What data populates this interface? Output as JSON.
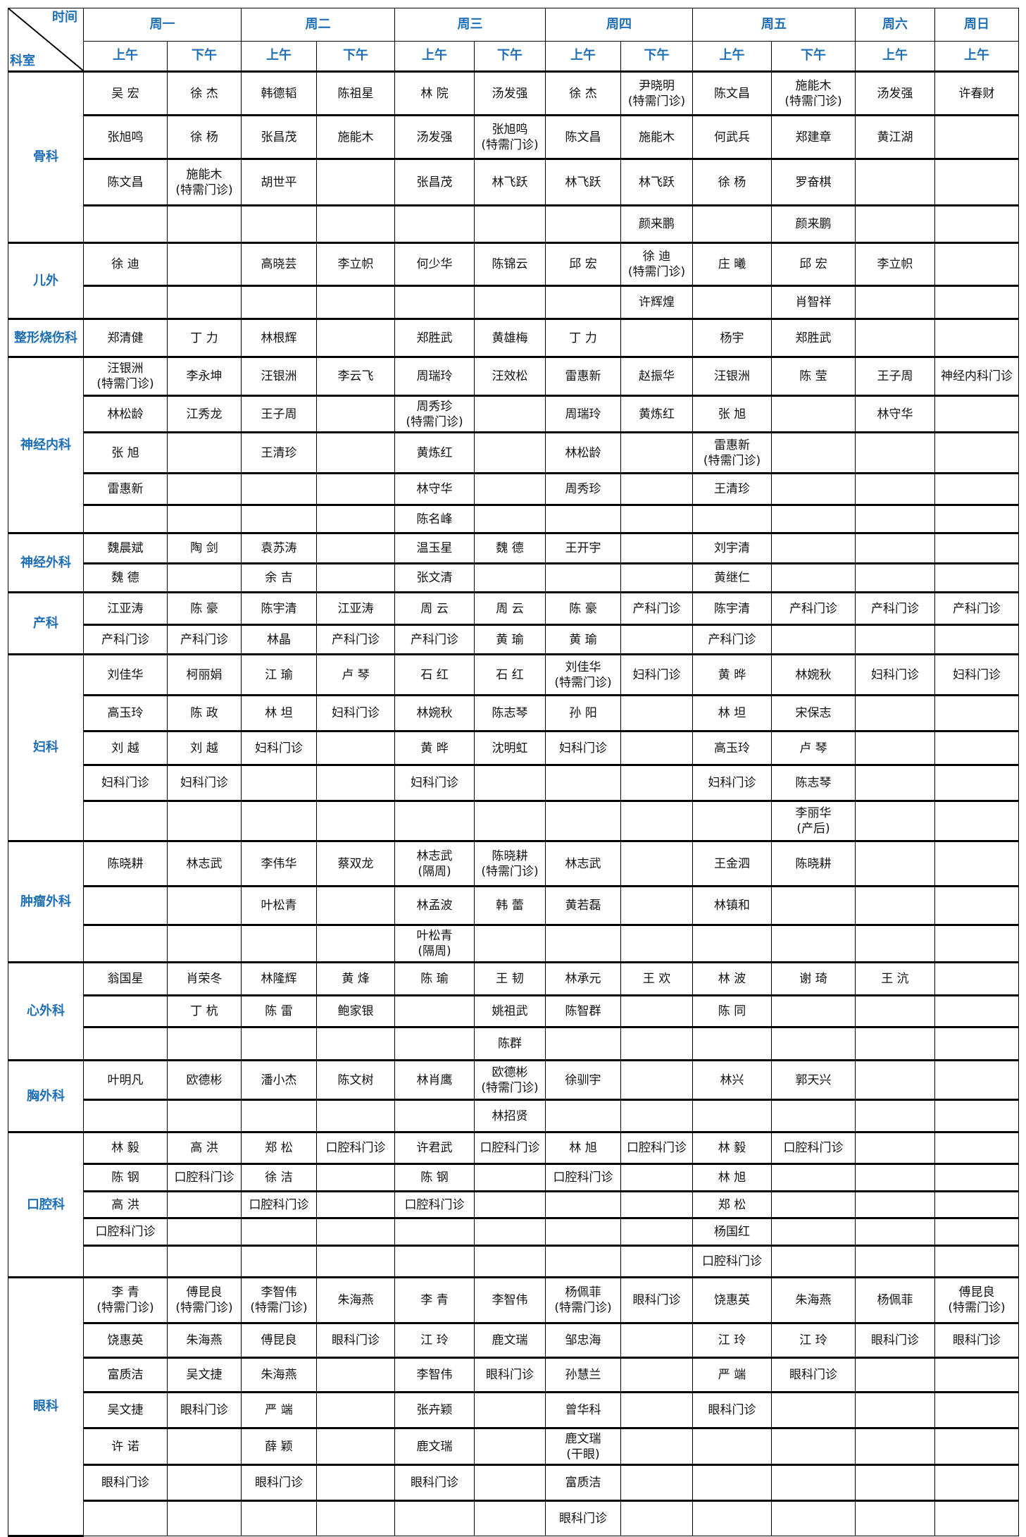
{
  "header": {
    "corner_top": "时间",
    "corner_bottom": "科室",
    "days": [
      {
        "label": "周一",
        "span": 2
      },
      {
        "label": "周二",
        "span": 2
      },
      {
        "label": "周三",
        "span": 2
      },
      {
        "label": "周四",
        "span": 2
      },
      {
        "label": "周五",
        "span": 2
      },
      {
        "label": "周六",
        "span": 1
      },
      {
        "label": "周日",
        "span": 1
      }
    ],
    "periods": [
      "上午",
      "下午",
      "上午",
      "下午",
      "上午",
      "下午",
      "上午",
      "下午",
      "上午",
      "下午",
      "上午",
      "上午"
    ]
  },
  "header_color": "#1f6fb6",
  "departments": [
    {
      "name": "骨科",
      "rows": [
        [
          "吴 宏",
          "徐 杰",
          "韩德韬",
          "陈祖星",
          "林 院",
          "汤发强",
          "徐 杰",
          "尹晓明\n(特需门诊)",
          "陈文昌",
          "施能木\n(特需门诊)",
          "汤发强",
          "许春财"
        ],
        [
          "张旭鸣",
          "徐 杨",
          "张昌茂",
          "施能木",
          "汤发强",
          "张旭鸣\n(特需门诊)",
          "陈文昌",
          "施能木",
          "何武兵",
          "郑建章",
          "黄江湖",
          ""
        ],
        [
          "陈文昌",
          "施能木\n(特需门诊)",
          "胡世平",
          "",
          "张昌茂",
          "林飞跃",
          "林飞跃",
          "林飞跃",
          "徐 杨",
          "罗奋棋",
          "",
          ""
        ],
        [
          "",
          "",
          "",
          "",
          "",
          "",
          "",
          "颜来鹏",
          "",
          "颜来鹏",
          "",
          ""
        ]
      ]
    },
    {
      "name": "儿外",
      "rows": [
        [
          "徐 迪",
          "",
          "高晓芸",
          "李立帜",
          "何少华",
          "陈锦云",
          "邱 宏",
          "徐 迪\n(特需门诊)",
          "庄 曦",
          "邱 宏",
          "李立帜",
          ""
        ],
        [
          "",
          "",
          "",
          "",
          "",
          "",
          "",
          "许辉煌",
          "",
          "肖智祥",
          "",
          ""
        ]
      ]
    },
    {
      "name": "整形烧伤科",
      "rows": [
        [
          "郑清健",
          "丁 力",
          "林根辉",
          "",
          "郑胜武",
          "黄雄梅",
          "丁 力",
          "",
          "杨宇",
          "郑胜武",
          "",
          ""
        ]
      ]
    },
    {
      "name": "神经内科",
      "rows": [
        [
          "汪银洲\n(特需门诊)",
          "李永坤",
          "汪银洲",
          "李云飞",
          "周瑞玲",
          "汪效松",
          "雷惠新",
          "赵振华",
          "汪银洲",
          "陈 莹",
          "王子周",
          "神经内科门诊"
        ],
        [
          "林松龄",
          "江秀龙",
          "王子周",
          "",
          "周秀珍\n(特需门诊)",
          "",
          "周瑞玲",
          "黄炼红",
          "张 旭",
          "",
          "林守华",
          ""
        ],
        [
          "张 旭",
          "",
          "王清珍",
          "",
          "黄炼红",
          "",
          "林松龄",
          "",
          "雷惠新\n(特需门诊)",
          "",
          "",
          ""
        ],
        [
          "雷惠新",
          "",
          "",
          "",
          "林守华",
          "",
          "周秀珍",
          "",
          "王清珍",
          "",
          "",
          ""
        ],
        [
          "",
          "",
          "",
          "",
          "陈名峰",
          "",
          "",
          "",
          "",
          "",
          "",
          ""
        ]
      ]
    },
    {
      "name": "神经外科",
      "rows": [
        [
          "魏晨斌",
          "陶 剑",
          "袁苏涛",
          "",
          "温玉星",
          "魏 德",
          "王开宇",
          "",
          "刘宇清",
          "",
          "",
          ""
        ],
        [
          "魏 德",
          "",
          "余 吉",
          "",
          "张文清",
          "",
          "",
          "",
          "黄继仁",
          "",
          "",
          ""
        ]
      ]
    },
    {
      "name": "产科",
      "rows": [
        [
          "江亚涛",
          "陈 豪",
          "陈宇清",
          "江亚涛",
          "周 云",
          "周 云",
          "陈 豪",
          "产科门诊",
          "陈宇清",
          "产科门诊",
          "产科门诊",
          "产科门诊"
        ],
        [
          "产科门诊",
          "产科门诊",
          "林晶",
          "产科门诊",
          "产科门诊",
          "黄 瑜",
          "黄 瑜",
          "",
          "产科门诊",
          "",
          "",
          ""
        ]
      ]
    },
    {
      "name": "妇科",
      "rows": [
        [
          "刘佳华",
          "柯丽娟",
          "江 瑜",
          "卢 琴",
          "石 红",
          "石 红",
          "刘佳华\n(特需门诊)",
          "妇科门诊",
          "黄 晔",
          "林婉秋",
          "妇科门诊",
          "妇科门诊"
        ],
        [
          "高玉玲",
          "陈 政",
          "林 坦",
          "妇科门诊",
          "林婉秋",
          "陈志琴",
          "孙 阳",
          "",
          "林 坦",
          "宋保志",
          "",
          ""
        ],
        [
          "刘 越",
          "刘 越",
          "妇科门诊",
          "",
          "黄 晔",
          "沈明虹",
          "妇科门诊",
          "",
          "高玉玲",
          "卢 琴",
          "",
          ""
        ],
        [
          "妇科门诊",
          "妇科门诊",
          "",
          "",
          "妇科门诊",
          "",
          "",
          "",
          "妇科门诊",
          "陈志琴",
          "",
          ""
        ],
        [
          "",
          "",
          "",
          "",
          "",
          "",
          "",
          "",
          "",
          "李丽华\n(产后)",
          "",
          ""
        ]
      ]
    },
    {
      "name": "肿瘤外科",
      "rows": [
        [
          "陈晓耕",
          "林志武",
          "李伟华",
          "蔡双龙",
          "林志武\n(隔周)",
          "陈晓耕\n(特需门诊)",
          "林志武",
          "",
          "王金泗",
          "陈晓耕",
          "",
          ""
        ],
        [
          "",
          "",
          "叶松青",
          "",
          "林孟波",
          "韩 蕾",
          "黄若磊",
          "",
          "林镇和",
          "",
          "",
          ""
        ],
        [
          "",
          "",
          "",
          "",
          "叶松青\n(隔周)",
          "",
          "",
          "",
          "",
          "",
          "",
          ""
        ]
      ]
    },
    {
      "name": "心外科",
      "rows": [
        [
          "翁国星",
          "肖荣冬",
          "林隆辉",
          "黄 烽",
          "陈 瑜",
          "王 韧",
          "林承元",
          "王 欢",
          "林 波",
          "谢 琦",
          "王 沆",
          ""
        ],
        [
          "",
          "丁 杭",
          "陈 雷",
          "鲍家银",
          "",
          "姚祖武",
          "陈智群",
          "",
          "陈 同",
          "",
          "",
          ""
        ],
        [
          "",
          "",
          "",
          "",
          "",
          "陈群",
          "",
          "",
          "",
          "",
          "",
          ""
        ]
      ]
    },
    {
      "name": "胸外科",
      "rows": [
        [
          "叶明凡",
          "欧德彬",
          "潘小杰",
          "陈文树",
          "林肖鹰",
          "欧德彬\n(特需门诊)",
          "徐驯宇",
          "",
          "林兴",
          "郭天兴",
          "",
          ""
        ],
        [
          "",
          "",
          "",
          "",
          "",
          "林招贤",
          "",
          "",
          "",
          "",
          "",
          ""
        ]
      ]
    },
    {
      "name": "口腔科",
      "rows": [
        [
          "林 毅",
          "高 洪",
          "郑 松",
          "口腔科门诊",
          "许君武",
          "口腔科门诊",
          "林 旭",
          "口腔科门诊",
          "林 毅",
          "口腔科门诊",
          "",
          ""
        ],
        [
          "陈 钢",
          "口腔科门诊",
          "徐 洁",
          "",
          "陈 钢",
          "",
          "口腔科门诊",
          "",
          "林 旭",
          "",
          "",
          ""
        ],
        [
          "高 洪",
          "",
          "口腔科门诊",
          "",
          "口腔科门诊",
          "",
          "",
          "",
          "郑 松",
          "",
          "",
          ""
        ],
        [
          "口腔科门诊",
          "",
          "",
          "",
          "",
          "",
          "",
          "",
          "杨国红",
          "",
          "",
          ""
        ],
        [
          "",
          "",
          "",
          "",
          "",
          "",
          "",
          "",
          "口腔科门诊",
          "",
          "",
          ""
        ]
      ]
    },
    {
      "name": "眼科",
      "rows": [
        [
          "李 青\n(特需门诊)",
          "傅昆良\n(特需门诊)",
          "李智伟\n(特需门诊)",
          "朱海燕",
          "李 青",
          "李智伟",
          "杨佩菲\n(特需门诊)",
          "眼科门诊",
          "饶惠英",
          "朱海燕",
          "杨佩菲",
          "傅昆良\n(特需门诊)"
        ],
        [
          "饶惠英",
          "朱海燕",
          "傅昆良",
          "眼科门诊",
          "江 玲",
          "鹿文瑞",
          "邹忠海",
          "",
          "江 玲",
          "江 玲",
          "眼科门诊",
          "眼科门诊"
        ],
        [
          "富质洁",
          "吴文捷",
          "朱海燕",
          "",
          "李智伟",
          "眼科门诊",
          "孙慧兰",
          "",
          "严 端",
          "眼科门诊",
          "",
          ""
        ],
        [
          "吴文捷",
          "眼科门诊",
          "严 端",
          "",
          "张卉颖",
          "",
          "曾华科",
          "",
          "眼科门诊",
          "",
          "",
          ""
        ],
        [
          "许 诺",
          "",
          "薛 颖",
          "",
          "鹿文瑞",
          "",
          "鹿文瑞\n(干眼)",
          "",
          "",
          "",
          "",
          ""
        ],
        [
          "眼科门诊",
          "",
          "眼科门诊",
          "",
          "眼科门诊",
          "",
          "富质洁",
          "",
          "",
          "",
          "",
          ""
        ],
        [
          "",
          "",
          "",
          "",
          "",
          "",
          "眼科门诊",
          "",
          "",
          "",
          "",
          ""
        ]
      ]
    }
  ]
}
